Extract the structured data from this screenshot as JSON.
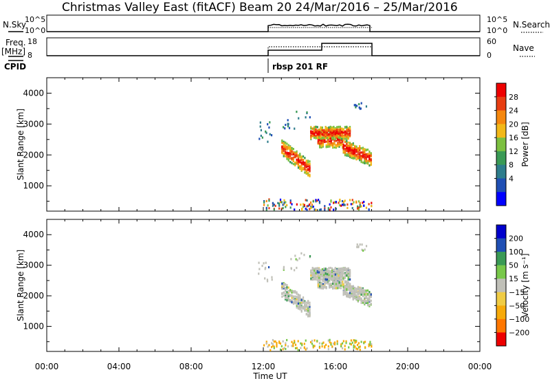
{
  "header": {
    "title_left": "Christmas Valley East (fitACF)",
    "title_right": "Beam 20  24/Mar/2016 – 25/Mar/2016"
  },
  "nsky_panel": {
    "label": "N.Sky",
    "right_label": "N.Search",
    "ticks_left": [
      "10^5",
      "10^0"
    ],
    "ticks_right": [
      "10^5",
      "10^0"
    ]
  },
  "freq_panel": {
    "label_line1": "Freq.",
    "label_line2": "[MHz]",
    "right_label": "Nave",
    "ticks_left": [
      "18",
      "8"
    ],
    "ticks_right": [
      "60",
      "0"
    ]
  },
  "cpid": {
    "label": "CPID",
    "mode_text": "rbsp 201 RF"
  },
  "chart_data": [
    {
      "type": "scatter",
      "kind": "range-time power",
      "xlabel": "",
      "ylabel": "Slant Range [km]",
      "ylim": [
        180,
        4500
      ],
      "yticks": [
        "4000",
        "3000",
        "2000",
        "1000"
      ],
      "colorbar_label": "Power [dB]",
      "colorbar_ticks": [
        "28",
        "24",
        "20",
        "16",
        "12",
        "8",
        "4"
      ],
      "colorbar_colors": [
        "#0000ff",
        "#1f4fb4",
        "#2e7d8c",
        "#3a9a55",
        "#7cc040",
        "#f2b818",
        "#f5870e",
        "#e83e12",
        "#ee0000"
      ],
      "data_extent": {
        "time_hours": [
          12,
          18
        ],
        "range_km": [
          300,
          3800
        ]
      }
    },
    {
      "type": "scatter",
      "kind": "range-time velocity",
      "xlabel": "Time UT",
      "ylabel": "Slant Range [km]",
      "ylim": [
        180,
        4500
      ],
      "yticks": [
        "4000",
        "3000",
        "2000",
        "1000"
      ],
      "xticks": [
        "00:00",
        "04:00",
        "08:00",
        "12:00",
        "16:00",
        "20:00",
        "00:00"
      ],
      "colorbar_label": "Velocity [m s⁻¹]",
      "colorbar_ticks": [
        "200",
        "100",
        "50",
        "15",
        "−15",
        "−50",
        "−100",
        "−200"
      ],
      "colorbar_colors": [
        "#ee0000",
        "#ff7700",
        "#f7aa0a",
        "#f0cc44",
        "#c0c0b8",
        "#78c84a",
        "#3a9a55",
        "#1f4fb4",
        "#0000cc"
      ],
      "data_extent": {
        "time_hours": [
          12,
          18
        ],
        "range_km": [
          300,
          3800
        ]
      }
    }
  ]
}
